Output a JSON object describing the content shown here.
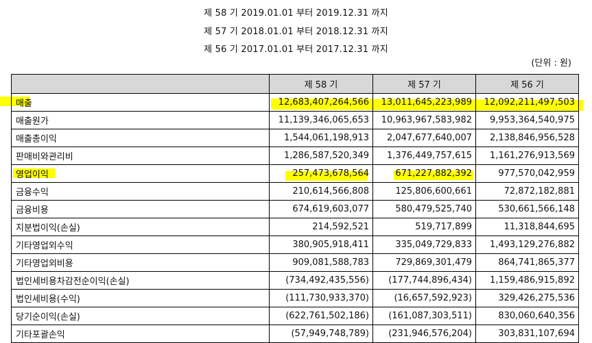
{
  "periods": [
    "제 58 기 2019.01.01 부터 2019.12.31 까지",
    "제 57 기 2018.01.01 부터 2018.12.31 까지",
    "제 56 기 2017.01.01 부터 2017.12.31 까지"
  ],
  "unit": "(단위 : 원)",
  "table": {
    "headers": [
      "",
      "제 58 기",
      "제 57 기",
      "제 56 기"
    ],
    "rows": [
      {
        "label": "매출",
        "v58": "12,683,407,264,566",
        "v57": "13,011,645,223,989",
        "v56": "12,092,211,497,503"
      },
      {
        "label": "매출원가",
        "v58": "11,139,346,065,653",
        "v57": "10,963,967,583,982",
        "v56": "9,953,364,540,975"
      },
      {
        "label": "매출총이익",
        "v58": "1,544,061,198,913",
        "v57": "2,047,677,640,007",
        "v56": "2,138,846,956,528"
      },
      {
        "label": "판매비와관리비",
        "v58": "1,286,587,520,349",
        "v57": "1,376,449,757,615",
        "v56": "1,161,276,913,569"
      },
      {
        "label": "영업이익",
        "v58": "257,473,678,564",
        "v57": "671,227,882,392",
        "v56": "977,570,042,959"
      },
      {
        "label": "금융수익",
        "v58": "210,614,566,808",
        "v57": "125,806,600,661",
        "v56": "72,872,182,881"
      },
      {
        "label": "금융비용",
        "v58": "674,619,603,077",
        "v57": "580,479,525,740",
        "v56": "530,661,566,148"
      },
      {
        "label": "지분법이익(손실)",
        "v58": "214,592,521",
        "v57": "519,717,899",
        "v56": "11,318,844,695"
      },
      {
        "label": "기타영업외수익",
        "v58": "380,905,918,411",
        "v57": "335,049,729,833",
        "v56": "1,493,129,276,882"
      },
      {
        "label": "기타영업외비용",
        "v58": "909,081,588,783",
        "v57": "729,869,301,479",
        "v56": "864,741,865,377"
      },
      {
        "label": "법인세비용차감전순이익(손실)",
        "v58": "(734,492,435,556)",
        "v57": "(177,744,896,434)",
        "v56": "1,159,486,915,892"
      },
      {
        "label": "법인세비용(수익)",
        "v58": "(111,730,933,370)",
        "v57": "(16,657,592,923)",
        "v56": "329,426,275,536"
      },
      {
        "label": "당기순이익(손실)",
        "v58": "(622,761,502,186)",
        "v57": "(161,087,303,511)",
        "v56": "830,060,640,356"
      },
      {
        "label": "기타포괄손익",
        "v58": "(57,949,748,789)",
        "v57": "(231,946,576,204)",
        "v56": "303,831,107,694"
      }
    ]
  },
  "highlight_color": "#ffff00"
}
